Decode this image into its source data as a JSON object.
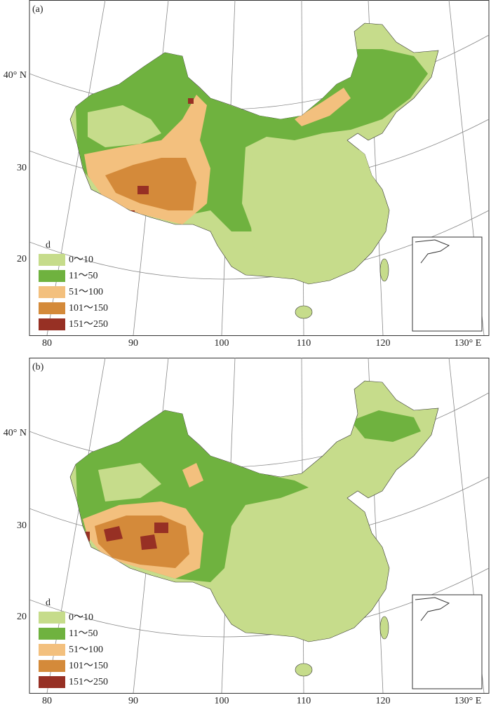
{
  "panels": [
    {
      "label": "(a)",
      "lat_labels": [
        "40° N",
        "30",
        "20"
      ],
      "lon_labels": [
        "80",
        "90",
        "100",
        "110",
        "120",
        "130° E"
      ],
      "legend": {
        "title": "d",
        "items": [
          {
            "label": "0～10",
            "color": "#c6dc8b"
          },
          {
            "label": "11～50",
            "color": "#6fb23f"
          },
          {
            "label": "51～100",
            "color": "#f3c07e"
          },
          {
            "label": "101～150",
            "color": "#d48a3a"
          },
          {
            "label": "151～250",
            "color": "#973024"
          }
        ]
      }
    },
    {
      "label": "(b)",
      "lat_labels": [
        "40° N",
        "30",
        "20"
      ],
      "lon_labels": [
        "80",
        "90",
        "100",
        "110",
        "120",
        "130° E"
      ],
      "legend": {
        "title": "d",
        "items": [
          {
            "label": "0～10",
            "color": "#c6dc8b"
          },
          {
            "label": "11～50",
            "color": "#6fb23f"
          },
          {
            "label": "51～100",
            "color": "#f3c07e"
          },
          {
            "label": "101～150",
            "color": "#d48a3a"
          },
          {
            "label": "151～250",
            "color": "#973024"
          }
        ]
      }
    }
  ]
}
